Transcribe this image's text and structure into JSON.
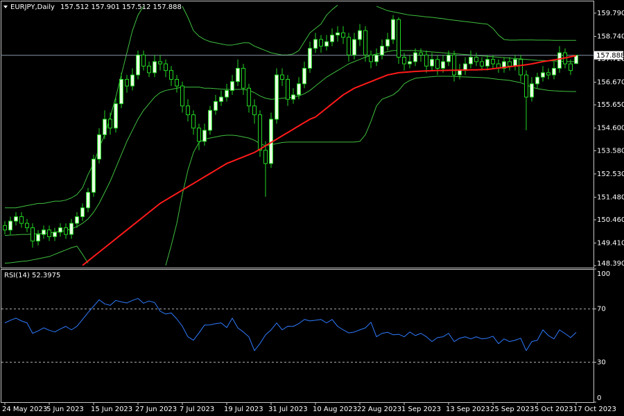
{
  "chart_data": [
    {
      "type": "candlestick",
      "title": "EURJPY,Daily",
      "subtitle": "157.512 157.901 157.512 157.888",
      "categories": [
        "24 May 2023",
        null,
        null,
        null,
        null,
        null,
        null,
        null,
        "5 Jun 2023",
        null,
        null,
        null,
        null,
        null,
        null,
        null,
        "15 Jun 2023",
        null,
        null,
        null,
        null,
        null,
        null,
        null,
        "27 Jun 2023",
        null,
        null,
        null,
        null,
        null,
        null,
        null,
        "7 Jul 2023",
        null,
        null,
        null,
        null,
        null,
        null,
        null,
        "19 Jul 2023",
        null,
        null,
        null,
        null,
        null,
        null,
        null,
        "31 Jul 2023",
        null,
        null,
        null,
        null,
        null,
        null,
        null,
        "10 Aug 2023",
        null,
        null,
        null,
        null,
        null,
        null,
        null,
        "22 Aug 2023",
        null,
        null,
        null,
        null,
        null,
        null,
        null,
        "1 Sep 2023",
        null,
        null,
        null,
        null,
        null,
        null,
        null,
        "13 Sep 2023",
        null,
        null,
        null,
        null,
        null,
        null,
        null,
        "25 Sep 2023",
        null,
        null,
        null,
        null,
        null,
        null,
        null,
        "5 Oct 2023",
        null,
        null,
        null,
        null,
        null,
        null,
        "17 Oct 2023"
      ],
      "open": [
        150.2,
        150.0,
        150.4,
        150.6,
        150.3,
        150.1,
        149.5,
        149.8,
        150.0,
        149.7,
        149.9,
        150.1,
        149.8,
        150.3,
        150.6,
        151.0,
        151.7,
        153.2,
        154.3,
        155.0,
        154.6,
        155.7,
        156.8,
        156.5,
        157.0,
        157.9,
        157.4,
        157.1,
        157.6,
        157.5,
        157.2,
        156.8,
        156.5,
        155.6,
        155.2,
        154.6,
        154.0,
        154.5,
        155.4,
        155.8,
        156.0,
        156.3,
        156.7,
        157.3,
        156.4,
        155.6,
        155.2,
        153.6,
        153.0,
        155.0,
        157.0,
        156.8,
        155.9,
        156.1,
        156.6,
        157.3,
        158.2,
        158.6,
        158.3,
        158.5,
        158.8,
        158.9,
        158.7,
        157.9,
        158.6,
        159.0,
        157.9,
        157.6,
        157.9,
        158.3,
        158.6,
        159.5,
        157.8,
        157.5,
        157.6,
        158.0,
        157.9,
        157.4,
        157.7,
        157.3,
        157.6,
        157.9,
        157.0,
        157.2,
        157.5,
        157.8,
        157.6,
        157.4,
        157.7,
        157.5,
        157.3,
        157.6,
        157.4,
        157.7,
        157.0,
        156.0,
        156.6,
        156.9,
        157.1,
        157.0,
        157.3,
        158.0,
        157.5,
        157.512
      ],
      "high": [
        150.4,
        150.6,
        150.8,
        150.8,
        150.5,
        150.3,
        150.0,
        150.2,
        150.2,
        150.1,
        150.3,
        150.3,
        150.5,
        150.8,
        151.2,
        151.9,
        153.4,
        154.6,
        155.4,
        155.3,
        156.0,
        157.1,
        157.0,
        157.3,
        158.1,
        158.1,
        157.6,
        157.9,
        157.9,
        157.7,
        157.4,
        157.0,
        156.7,
        155.9,
        155.4,
        154.8,
        154.8,
        155.6,
        156.1,
        156.3,
        156.6,
        157.0,
        157.7,
        157.5,
        156.6,
        155.9,
        155.4,
        154.0,
        155.3,
        157.3,
        157.3,
        157.0,
        156.4,
        156.9,
        157.6,
        158.5,
        158.9,
        158.8,
        158.8,
        159.1,
        159.2,
        159.2,
        158.9,
        158.9,
        159.3,
        159.2,
        158.1,
        158.2,
        158.6,
        158.9,
        159.7,
        159.6,
        158.0,
        157.9,
        158.2,
        158.2,
        158.1,
        158.0,
        157.9,
        157.9,
        158.1,
        158.1,
        157.5,
        157.8,
        158.1,
        158.0,
        157.8,
        157.9,
        157.9,
        157.7,
        157.8,
        157.8,
        157.9,
        157.9,
        157.2,
        156.9,
        157.1,
        157.4,
        157.3,
        157.6,
        158.3,
        158.2,
        157.7,
        157.901
      ],
      "low": [
        149.8,
        149.8,
        150.2,
        150.1,
        149.9,
        149.2,
        149.3,
        149.6,
        149.5,
        149.5,
        149.7,
        149.6,
        149.6,
        150.1,
        150.4,
        150.8,
        151.5,
        153.0,
        154.1,
        154.3,
        154.4,
        155.5,
        156.2,
        156.3,
        156.8,
        157.2,
        156.9,
        156.9,
        157.2,
        156.9,
        156.5,
        156.2,
        155.3,
        154.9,
        154.3,
        153.6,
        153.8,
        154.3,
        155.2,
        155.6,
        155.8,
        156.1,
        156.5,
        156.1,
        155.3,
        154.8,
        153.3,
        151.5,
        152.8,
        154.8,
        156.5,
        155.6,
        155.7,
        155.9,
        156.4,
        157.1,
        158.0,
        158.0,
        158.1,
        158.3,
        158.5,
        158.4,
        157.6,
        157.7,
        158.3,
        157.6,
        157.3,
        157.4,
        157.7,
        158.1,
        158.4,
        157.5,
        157.2,
        157.3,
        157.4,
        157.6,
        157.1,
        157.2,
        157.0,
        157.1,
        157.4,
        156.7,
        156.8,
        157.0,
        157.3,
        157.4,
        157.2,
        157.2,
        157.3,
        157.1,
        157.1,
        157.2,
        157.2,
        156.7,
        154.5,
        155.8,
        156.4,
        156.7,
        156.8,
        156.8,
        157.1,
        157.3,
        157.0,
        157.512
      ],
      "close": [
        150.0,
        150.4,
        150.6,
        150.3,
        150.1,
        149.5,
        149.8,
        150.0,
        149.7,
        149.9,
        150.1,
        149.8,
        150.3,
        150.6,
        151.0,
        151.7,
        153.2,
        154.3,
        155.0,
        154.6,
        155.7,
        156.8,
        156.5,
        157.0,
        157.9,
        157.4,
        157.1,
        157.6,
        157.5,
        157.2,
        156.8,
        156.5,
        155.6,
        155.2,
        154.6,
        154.0,
        154.5,
        155.4,
        155.8,
        156.0,
        156.3,
        156.7,
        157.3,
        156.4,
        155.6,
        155.2,
        153.6,
        153.0,
        155.0,
        157.0,
        156.8,
        155.9,
        156.1,
        156.6,
        157.3,
        158.2,
        158.6,
        158.3,
        158.5,
        158.8,
        158.9,
        158.7,
        157.9,
        158.6,
        159.0,
        157.9,
        157.6,
        157.9,
        158.3,
        158.6,
        159.5,
        157.8,
        157.5,
        157.6,
        158.0,
        157.9,
        157.4,
        157.7,
        157.3,
        157.6,
        157.9,
        157.0,
        157.2,
        157.5,
        157.8,
        157.6,
        157.4,
        157.7,
        157.5,
        157.3,
        157.6,
        157.4,
        157.7,
        157.0,
        156.0,
        156.6,
        156.9,
        157.1,
        157.0,
        157.3,
        158.0,
        157.5,
        157.2,
        157.888
      ],
      "up_color": "#e6ffe0",
      "down_color": "#000000",
      "wick_color": "#22d622",
      "bands": {
        "color": "#3fbf3f",
        "upper": [
          151.0,
          151.0,
          151.0,
          151.05,
          151.1,
          151.15,
          151.2,
          151.2,
          151.25,
          151.3,
          151.3,
          151.35,
          151.45,
          151.6,
          151.9,
          152.5,
          153.0,
          153.7,
          154.3,
          155.1,
          156.0,
          157.0,
          158.0,
          159.0,
          159.7,
          160.1,
          null,
          null,
          null,
          null,
          null,
          null,
          160.1,
          159.6,
          159.0,
          158.75,
          158.6,
          158.5,
          158.45,
          158.4,
          158.35,
          158.35,
          158.4,
          158.45,
          158.45,
          158.3,
          158.2,
          158.1,
          158.0,
          157.95,
          157.9,
          157.9,
          157.95,
          158.1,
          158.5,
          158.9,
          159.1,
          159.3,
          159.7,
          159.95,
          160.15,
          null,
          null,
          null,
          null,
          null,
          null,
          160.1,
          160.0,
          159.9,
          159.85,
          159.8,
          159.75,
          159.7,
          159.68,
          159.65,
          159.62,
          159.6,
          159.57,
          159.54,
          159.5,
          159.47,
          159.44,
          159.41,
          159.38,
          159.35,
          159.32,
          159.29,
          159.1,
          158.8,
          158.6,
          158.57,
          158.57,
          158.58,
          158.58,
          158.58,
          158.57,
          158.57,
          158.57,
          158.56,
          158.56,
          158.56,
          158.56,
          158.56
        ],
        "middle": [
          149.75,
          149.77,
          149.78,
          149.8,
          149.8,
          149.82,
          149.83,
          149.85,
          149.87,
          149.9,
          149.93,
          149.97,
          150.05,
          150.15,
          150.3,
          150.5,
          150.8,
          151.2,
          151.7,
          152.2,
          152.8,
          153.4,
          154.0,
          154.5,
          155.0,
          155.4,
          155.7,
          156.0,
          156.2,
          156.3,
          156.35,
          156.4,
          156.45,
          156.45,
          156.45,
          156.45,
          156.4,
          156.4,
          156.38,
          156.36,
          156.35,
          156.35,
          156.35,
          156.35,
          156.3,
          156.2,
          156.05,
          155.95,
          155.9,
          155.92,
          155.95,
          155.97,
          156.0,
          156.05,
          156.15,
          156.3,
          156.5,
          156.7,
          156.9,
          157.05,
          157.2,
          157.35,
          157.5,
          157.6,
          157.7,
          157.8,
          157.88,
          157.95,
          158.0,
          158.05,
          158.1,
          158.1,
          158.1,
          158.1,
          158.1,
          158.08,
          158.06,
          158.04,
          158.02,
          158.0,
          157.98,
          157.96,
          157.94,
          157.92,
          157.9,
          157.88,
          157.86,
          157.84,
          157.82,
          157.8,
          157.78,
          157.76,
          157.74,
          157.72,
          157.7,
          157.68,
          157.66,
          157.65,
          157.64,
          157.63,
          157.62,
          157.61,
          157.6,
          157.6
        ],
        "lower": [
          148.5,
          148.52,
          148.55,
          148.58,
          148.6,
          148.65,
          148.7,
          148.75,
          148.8,
          148.9,
          149.0,
          149.1,
          149.2,
          149.27,
          148.9,
          148.5,
          null,
          null,
          null,
          null,
          null,
          null,
          null,
          null,
          null,
          null,
          null,
          null,
          null,
          148.4,
          149.3,
          150.3,
          151.6,
          152.7,
          153.5,
          153.95,
          154.1,
          154.15,
          154.2,
          154.25,
          154.28,
          154.28,
          154.25,
          154.2,
          154.15,
          154.05,
          153.9,
          153.8,
          153.85,
          153.9,
          153.95,
          153.97,
          153.97,
          153.97,
          153.97,
          153.97,
          153.97,
          153.97,
          153.97,
          153.97,
          153.97,
          153.97,
          153.97,
          153.97,
          154.0,
          154.3,
          154.9,
          155.6,
          155.9,
          156.0,
          156.1,
          156.3,
          156.6,
          156.75,
          156.85,
          156.88,
          156.9,
          156.92,
          156.94,
          156.94,
          156.94,
          156.93,
          156.92,
          156.91,
          156.9,
          156.89,
          156.88,
          156.86,
          156.83,
          156.8,
          156.78,
          156.75,
          156.7,
          156.65,
          156.55,
          156.45,
          156.38,
          156.34,
          156.3,
          156.28,
          156.27,
          156.26,
          156.25,
          156.25
        ]
      },
      "ma": {
        "color": "#ff1a1a",
        "values": [
          null,
          null,
          null,
          null,
          null,
          null,
          null,
          null,
          null,
          null,
          null,
          null,
          null,
          null,
          148.4,
          148.6,
          148.8,
          149.0,
          149.2,
          149.4,
          149.6,
          149.8,
          150.0,
          150.2,
          150.4,
          150.6,
          150.8,
          151.0,
          151.2,
          151.35,
          151.5,
          151.65,
          151.8,
          151.95,
          152.1,
          152.25,
          152.4,
          152.55,
          152.7,
          152.85,
          153.0,
          153.1,
          153.2,
          153.3,
          153.4,
          153.5,
          153.65,
          153.8,
          153.95,
          154.1,
          154.25,
          154.4,
          154.55,
          154.7,
          154.85,
          155.0,
          155.1,
          155.3,
          155.5,
          155.7,
          155.9,
          156.1,
          156.25,
          156.4,
          156.5,
          156.6,
          156.7,
          156.8,
          156.9,
          157.0,
          157.05,
          157.1,
          157.12,
          157.14,
          157.16,
          157.17,
          157.18,
          157.19,
          157.2,
          157.2,
          157.21,
          157.21,
          157.22,
          157.22,
          157.23,
          157.23,
          157.24,
          157.25,
          157.28,
          157.31,
          157.34,
          157.37,
          157.4,
          157.43,
          157.46,
          157.5,
          157.55,
          157.6,
          157.64,
          157.68,
          157.72,
          157.77,
          157.82,
          157.87
        ]
      },
      "last_price": 157.888,
      "last_price_color": "#8a96a8",
      "ylim": [
        148.3,
        160.32
      ],
      "yticks": [
        {
          "value": 159.79,
          "label": "159.790"
        },
        {
          "value": 158.74,
          "label": "158.740"
        },
        {
          "value": 157.72,
          "label": "157.720"
        },
        {
          "value": 156.67,
          "label": "156.670"
        },
        {
          "value": 155.65,
          "label": "155.650"
        },
        {
          "value": 154.6,
          "label": "154.600"
        },
        {
          "value": 153.58,
          "label": "153.580"
        },
        {
          "value": 152.53,
          "label": "152.530"
        },
        {
          "value": 151.48,
          "label": "151.480"
        },
        {
          "value": 150.46,
          "label": "150.460"
        },
        {
          "value": 149.41,
          "label": "149.410"
        },
        {
          "value": 148.39,
          "label": "148.390"
        }
      ]
    },
    {
      "type": "line",
      "title": "RSI(14) 52.3975",
      "color": "#2f7bff",
      "values": [
        59.5,
        61.5,
        63.1,
        61.0,
        59.5,
        51.7,
        53.5,
        55.8,
        54.0,
        52.7,
        55.0,
        56.9,
        54.3,
        57.0,
        62.1,
        67.3,
        72.0,
        76.9,
        73.8,
        72.7,
        76.4,
        75.3,
        74.5,
        76.4,
        77.9,
        74.3,
        76.0,
        74.8,
        68.3,
        66.2,
        67.0,
        62.5,
        57.0,
        49.1,
        46.5,
        52.0,
        57.9,
        58.0,
        59.0,
        59.5,
        56.0,
        63.1,
        55.8,
        52.7,
        49.0,
        38.7,
        44.0,
        50.6,
        54.3,
        59.5,
        54.3,
        57.0,
        56.9,
        59.0,
        62.1,
        61.0,
        61.5,
        62.1,
        59.5,
        62.1,
        56.9,
        54.3,
        52.0,
        52.7,
        54.3,
        55.8,
        60.0,
        49.1,
        51.7,
        52.5,
        50.6,
        51.0,
        49.1,
        52.7,
        50.0,
        51.7,
        49.1,
        45.5,
        48.5,
        49.1,
        51.7,
        45.5,
        48.0,
        49.1,
        47.5,
        49.1,
        47.5,
        48.0,
        49.5,
        43.9,
        47.5,
        45.5,
        46.5,
        48.0,
        38.7,
        45.5,
        46.5,
        54.3,
        50.0,
        47.5,
        54.3,
        51.5,
        48.5,
        52.3975
      ],
      "ylim": [
        0,
        100
      ],
      "yticks": [
        100,
        70,
        30,
        0
      ]
    }
  ]
}
